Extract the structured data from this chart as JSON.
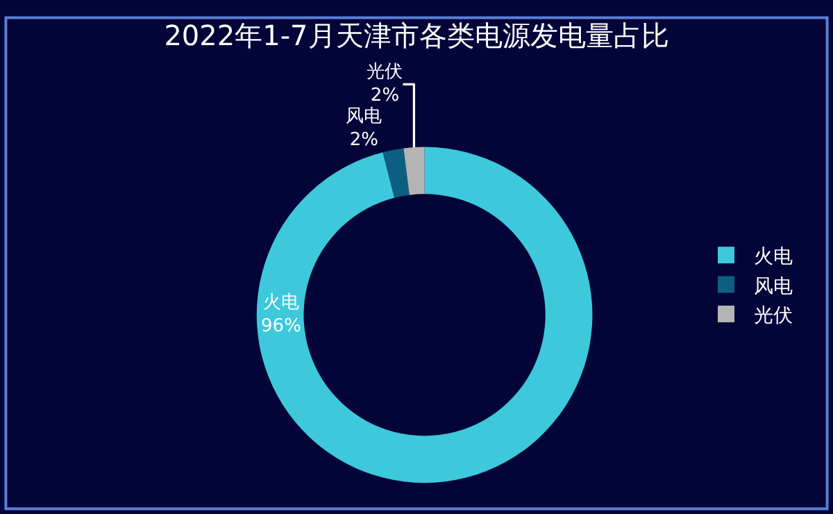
{
  "chart_data": {
    "type": "donut",
    "title": "2022年1-7月天津市各类电源发电量占比",
    "categories": [
      "火电",
      "风电",
      "光伏"
    ],
    "values": [
      96,
      2,
      2
    ],
    "colors": [
      "#3ec8dc",
      "#0c5f80",
      "#b4b4b4"
    ],
    "value_labels": [
      "96%",
      "2%",
      "2%"
    ],
    "legend": "right"
  }
}
